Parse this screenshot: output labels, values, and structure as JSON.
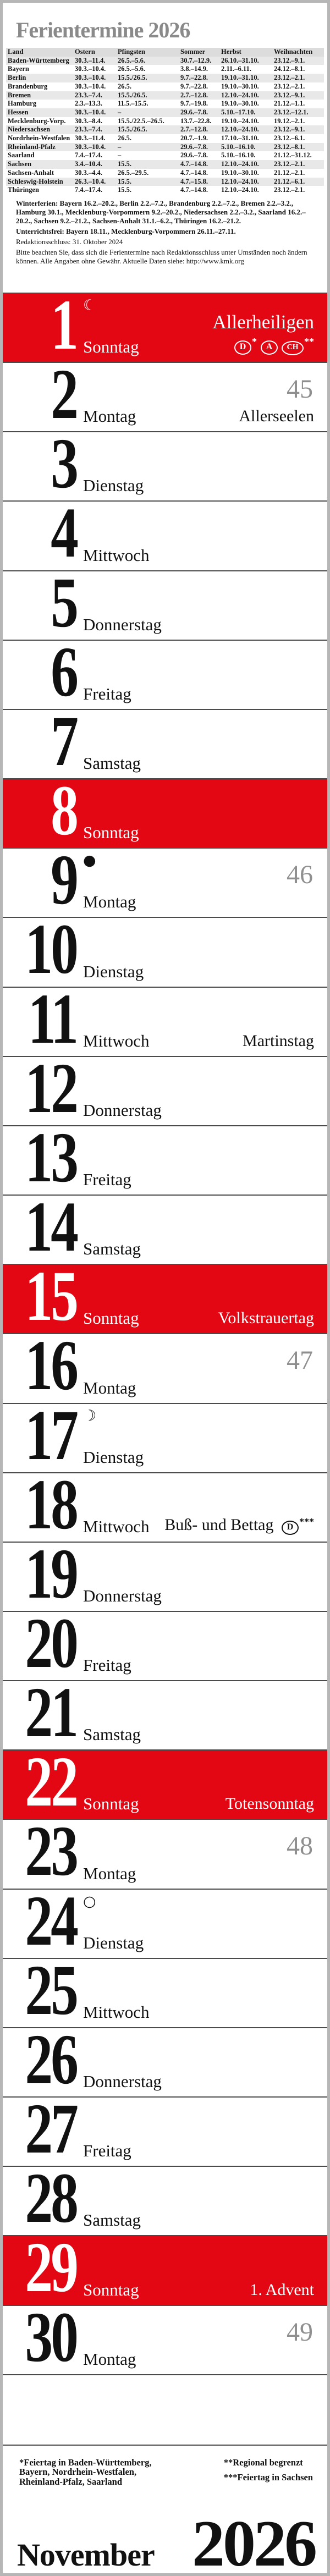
{
  "page": {
    "title": "Ferientermine 2026"
  },
  "colors": {
    "accent_red": "#e30613",
    "title_gray": "#8a8a8a",
    "week_number_gray": "#8f8f8f"
  },
  "ferien_table": {
    "columns": [
      "Land",
      "Ostern",
      "Pfingsten",
      "Sommer",
      "Herbst",
      "Weihnachten"
    ],
    "rows": [
      [
        "Baden-Württemberg",
        "30.3.–11.4.",
        "26.5.–5.6.",
        "30.7.–12.9.",
        "26.10.–31.10.",
        "23.12.–9.1."
      ],
      [
        "Bayern",
        "30.3.–10.4.",
        "26.5.–5.6.",
        "3.8.–14.9.",
        "2.11.–6.11.",
        "24.12.–8.1."
      ],
      [
        "Berlin",
        "30.3.–10.4.",
        "15.5./26.5.",
        "9.7.–22.8.",
        "19.10.–31.10.",
        "23.12.–2.1."
      ],
      [
        "Brandenburg",
        "30.3.–10.4.",
        "26.5.",
        "9.7.–22.8.",
        "19.10.–30.10.",
        "23.12.–2.1."
      ],
      [
        "Bremen",
        "23.3.–7.4.",
        "15.5./26.5.",
        "2.7.–12.8.",
        "12.10.–24.10.",
        "23.12.–9.1."
      ],
      [
        "Hamburg",
        "2.3.–13.3.",
        "11.5.–15.5.",
        "9.7.–19.8.",
        "19.10.–30.10.",
        "21.12.–1.1."
      ],
      [
        "Hessen",
        "30.3.–10.4.",
        "–",
        "29.6.–7.8.",
        "5.10.–17.10.",
        "23.12.–12.1."
      ],
      [
        "Mecklenburg-Vorp.",
        "30.3.–8.4.",
        "15.5./22.5.–26.5.",
        "13.7.–22.8.",
        "19.10.–24.10.",
        "19.12.–2.1."
      ],
      [
        "Niedersachsen",
        "23.3.–7.4.",
        "15.5./26.5.",
        "2.7.–12.8.",
        "12.10.–24.10.",
        "23.12.–9.1."
      ],
      [
        "Nordrhein-Westfalen",
        "30.3.–11.4.",
        "26.5.",
        "20.7.–1.9.",
        "17.10.–31.10.",
        "23.12.–6.1."
      ],
      [
        "Rheinland-Pfalz",
        "30.3.–10.4.",
        "–",
        "29.6.–7.8.",
        "5.10.–16.10.",
        "23.12.–8.1."
      ],
      [
        "Saarland",
        "7.4.–17.4.",
        "–",
        "29.6.–7.8.",
        "5.10.–16.10.",
        "21.12.–31.12."
      ],
      [
        "Sachsen",
        "3.4.–10.4.",
        "15.5.",
        "4.7.–14.8.",
        "12.10.–24.10.",
        "23.12.–2.1."
      ],
      [
        "Sachsen-Anhalt",
        "30.3.–4.4.",
        "26.5.–29.5.",
        "4.7.–14.8.",
        "19.10.–30.10.",
        "21.12.–2.1."
      ],
      [
        "Schleswig-Holstein",
        "26.3.–10.4.",
        "15.5.",
        "4.7.–15.8.",
        "12.10.–24.10.",
        "21.12.–6.1."
      ],
      [
        "Thüringen",
        "7.4.–17.4.",
        "15.5.",
        "4.7.–14.8.",
        "12.10.–24.10.",
        "23.12.–2.1."
      ]
    ]
  },
  "notes": {
    "winterferien_label": "Winterferien: ",
    "winterferien_text": "Bayern 16.2.–20.2., Berlin 2.2.–7.2., Brandenburg 2.2.–7.2., Bremen 2.2.–3.2., Hamburg 30.1., Mecklenburg-Vorpommern 9.2.–20.2., Niedersachsen 2.2.–3.2., Saarland 16.2.–20.2., Sachsen 9.2.–21.2., Sachsen-Anhalt 31.1.–6.2., Thüringen 16.2.–21.2.",
    "unterrichtsfrei_label": "Unterrichtsfrei: ",
    "unterrichtsfrei_text": "Bayern 18.11., Mecklenburg-Vorpommern 26.11.–27.11.",
    "redaktionsschluss": "Redaktionsschluss: 31. Oktober 2024",
    "disclaimer": "Bitte beachten Sie, dass sich die Ferientermine nach Redaktionsschluss unter Umständen noch ändern können. Alle Angaben ohne Gewähr. Aktuelle Daten siehe: http://www.kmk.org"
  },
  "calendar": {
    "days": [
      {
        "num": "1",
        "weekday": "Sonntag",
        "red": true,
        "moon": "☾",
        "holiday": "Allerheiligen",
        "symbols": [
          {
            "letter": "D",
            "stars": "*"
          },
          {
            "letter": "A",
            "stars": ""
          },
          {
            "letter": "CH",
            "stars": "**"
          }
        ],
        "symbols_new_line": true
      },
      {
        "num": "2",
        "weekday": "Montag",
        "red": false,
        "week": "45",
        "holiday": "Allerseelen"
      },
      {
        "num": "3",
        "weekday": "Dienstag",
        "red": false
      },
      {
        "num": "4",
        "weekday": "Mittwoch",
        "red": false
      },
      {
        "num": "5",
        "weekday": "Donnerstag",
        "red": false
      },
      {
        "num": "6",
        "weekday": "Freitag",
        "red": false
      },
      {
        "num": "7",
        "weekday": "Samstag",
        "red": false
      },
      {
        "num": "8",
        "weekday": "Sonntag",
        "red": true
      },
      {
        "num": "9",
        "weekday": "Montag",
        "red": false,
        "moon": "●",
        "week": "46"
      },
      {
        "num": "10",
        "weekday": "Dienstag",
        "red": false
      },
      {
        "num": "11",
        "weekday": "Mittwoch",
        "red": false,
        "holiday": "Martinstag"
      },
      {
        "num": "12",
        "weekday": "Donnerstag",
        "red": false
      },
      {
        "num": "13",
        "weekday": "Freitag",
        "red": false
      },
      {
        "num": "14",
        "weekday": "Samstag",
        "red": false
      },
      {
        "num": "15",
        "weekday": "Sonntag",
        "red": true,
        "holiday": "Volkstrauertag"
      },
      {
        "num": "16",
        "weekday": "Montag",
        "red": false,
        "week": "47"
      },
      {
        "num": "17",
        "weekday": "Dienstag",
        "red": false,
        "moon": "☽"
      },
      {
        "num": "18",
        "weekday": "Mittwoch",
        "red": false,
        "holiday": "Buß- und Bettag",
        "symbols": [
          {
            "letter": "D",
            "stars": "***"
          }
        ],
        "symbols_new_line": false
      },
      {
        "num": "19",
        "weekday": "Donnerstag",
        "red": false
      },
      {
        "num": "20",
        "weekday": "Freitag",
        "red": false
      },
      {
        "num": "21",
        "weekday": "Samstag",
        "red": false
      },
      {
        "num": "22",
        "weekday": "Sonntag",
        "red": true,
        "holiday": "Totensonntag"
      },
      {
        "num": "23",
        "weekday": "Montag",
        "red": false,
        "week": "48"
      },
      {
        "num": "24",
        "weekday": "Dienstag",
        "red": false,
        "moon": "○"
      },
      {
        "num": "25",
        "weekday": "Mittwoch",
        "red": false
      },
      {
        "num": "26",
        "weekday": "Donnerstag",
        "red": false
      },
      {
        "num": "27",
        "weekday": "Freitag",
        "red": false
      },
      {
        "num": "28",
        "weekday": "Samstag",
        "red": false
      },
      {
        "num": "29",
        "weekday": "Sonntag",
        "red": true,
        "holiday": "1. Advent"
      },
      {
        "num": "30",
        "weekday": "Montag",
        "red": false,
        "week": "49"
      }
    ]
  },
  "footer": {
    "footnote_left": "*Feiertag in Baden-Württemberg,\nBayern, Nordrhein-Westfalen,\nRheinland-Pfalz, Saarland",
    "footnote_right_1": "**Regional begrenzt",
    "footnote_right_2": "***Feiertag in Sachsen",
    "month": "November",
    "year": "2026"
  }
}
